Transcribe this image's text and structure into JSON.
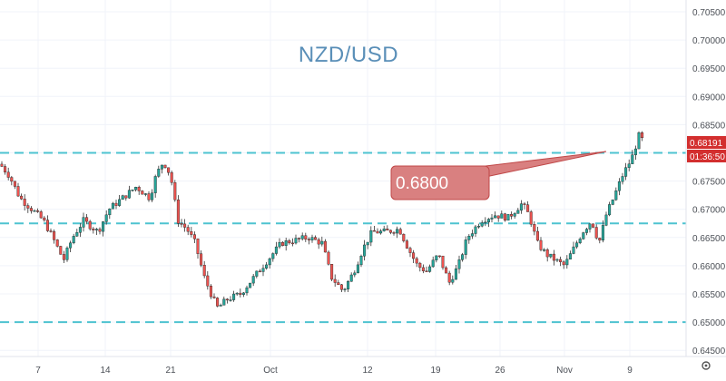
{
  "chart_data": {
    "type": "candlestick",
    "title": "NZD/USD",
    "ylim": [
      0.6435,
      0.7065
    ],
    "y_ticks": [
      "0.70500",
      "0.70000",
      "0.69500",
      "0.69000",
      "0.68500",
      "0.68000",
      "0.67500",
      "0.67000",
      "0.66500",
      "0.66000",
      "0.65500",
      "0.65000",
      "0.64500"
    ],
    "x_ticks": [
      "7",
      "14",
      "21",
      "Oct",
      "12",
      "19",
      "26",
      "Nov",
      "9"
    ],
    "horizontal_levels": [
      0.68,
      0.6675,
      0.65
    ],
    "callout": {
      "text": "0.6800",
      "value": 0.68
    },
    "current_price": {
      "label": "0.68191",
      "countdown": "01:36:50"
    },
    "colors": {
      "up": "#26a69a",
      "down": "#ef5350",
      "wick": "#333333",
      "level_line": "#4ec3d0",
      "title": "#5a8fb8",
      "callout_bg": "#d98080",
      "callout_border": "#c04848",
      "badge": "#d32f2f"
    }
  },
  "icons": {
    "settings": "gear-icon"
  }
}
